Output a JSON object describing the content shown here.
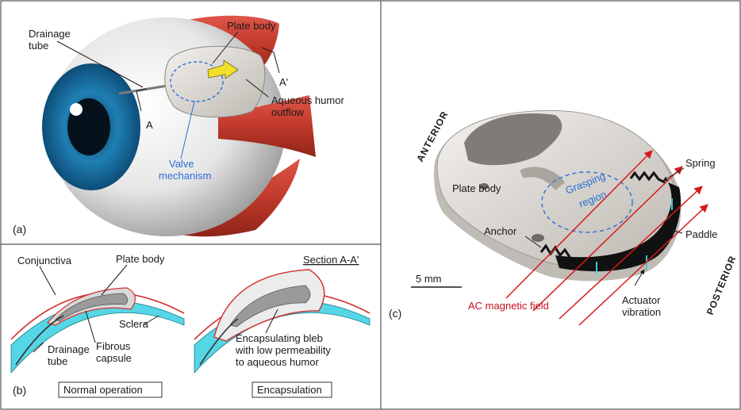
{
  "panel_a": {
    "label": "(a)",
    "drainage_tube": [
      "Drainage",
      "tube"
    ],
    "plate_body": "Plate body",
    "section_a": "A",
    "section_a_prime": "A'",
    "outflow": [
      "Aqueous humor",
      "outflow"
    ],
    "valve": [
      "Valve",
      "mechanism"
    ]
  },
  "panel_b": {
    "label": "(b)",
    "conjunctiva": "Conjunctiva",
    "plate_body": "Plate body",
    "section": "Section A-A'",
    "sclera": "Sclera",
    "drainage_tube": [
      "Drainage",
      "tube"
    ],
    "fibrous_capsule": [
      "Fibrous",
      "capsule"
    ],
    "bleb": [
      "Encapsulating bleb",
      "with low permeability",
      "to aqueous humor"
    ],
    "normal_box": "Normal operation",
    "encap_box": "Encapsulation"
  },
  "panel_c": {
    "label": "(c)",
    "anterior": "ANTERIOR",
    "posterior": "POSTERIOR",
    "spring": "Spring",
    "plate_body": "Plate body",
    "grasping": [
      "Grasping",
      "region"
    ],
    "anchor": "Anchor",
    "paddle": "Paddle",
    "scale": "5 mm",
    "magnetic": "AC magnetic field",
    "actuator": [
      "Actuator",
      "vibration"
    ]
  }
}
